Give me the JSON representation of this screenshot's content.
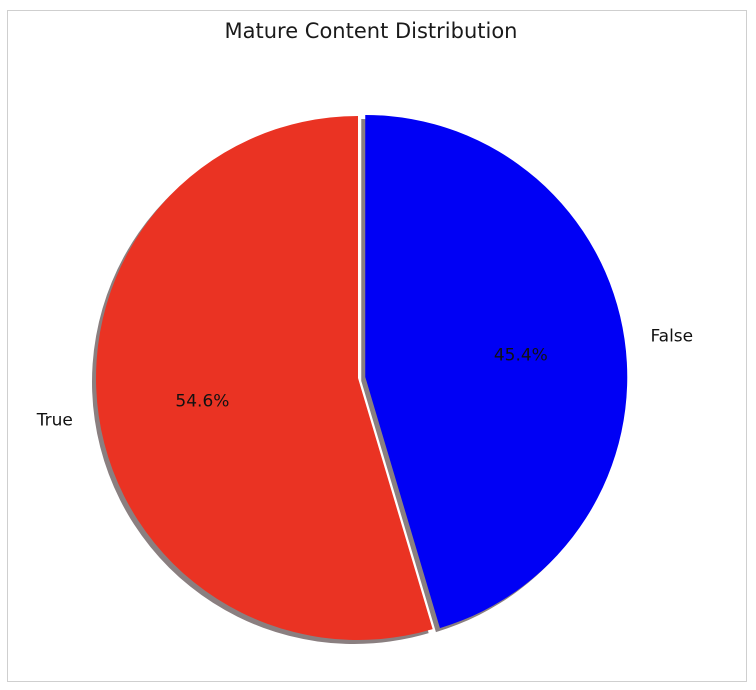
{
  "chart_data": {
    "type": "pie",
    "title": "Mature Content Distribution",
    "categories": [
      "True",
      "False"
    ],
    "values": [
      54.6,
      45.4
    ],
    "labels": [
      "54.6%",
      "45.4%"
    ],
    "colors": [
      "#ea3323",
      "#0000f5"
    ],
    "shadow_color": "#8a7f80",
    "start_angle_deg": 90,
    "explode": [
      0,
      0.1
    ],
    "shadow": true,
    "legend": "none",
    "grid": false
  }
}
